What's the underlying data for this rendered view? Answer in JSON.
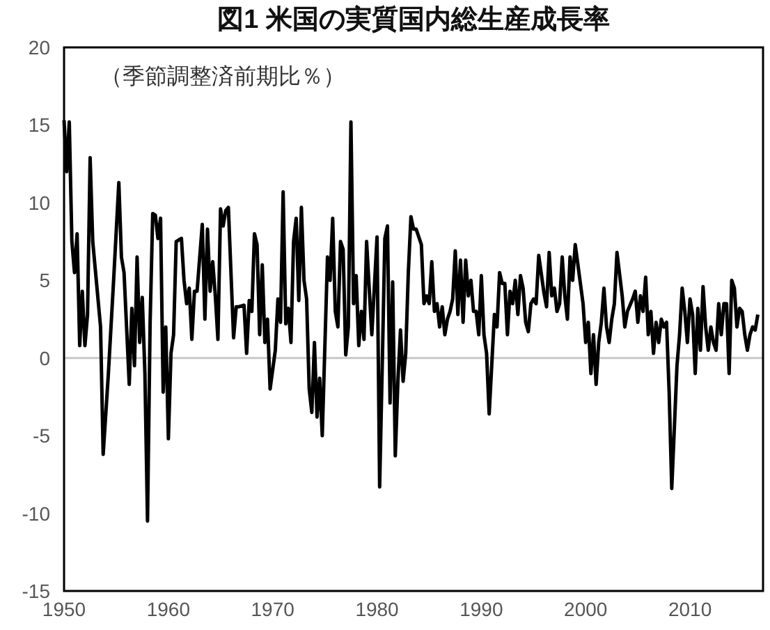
{
  "chart_data": {
    "type": "line",
    "title": "図1 米国の実質国内総生産成長率",
    "annotations": [
      "（季節調整済前期比％）"
    ],
    "color": "#000000",
    "xlim": [
      1950,
      2017
    ],
    "ylim": [
      -15,
      20
    ],
    "xticks": [
      1950,
      1960,
      1970,
      1980,
      1990,
      2000,
      2010
    ],
    "yticks": [
      -15,
      -10,
      -5,
      0,
      5,
      10,
      15,
      20
    ],
    "ref_lines": [
      {
        "axis": "y",
        "value": 0,
        "color": "#c8c8c8"
      }
    ],
    "grid": false,
    "line_style": "solid",
    "marker": "none",
    "x": [
      1950,
      1950.25,
      1950.5,
      1950.75,
      1951,
      1951.25,
      1951.5,
      1951.75,
      1952,
      1952.25,
      1952.5,
      1952.75,
      1953.5,
      1953.75,
      1954.25,
      1954.75,
      1955.25,
      1955.5,
      1955.75,
      1956.25,
      1956.5,
      1956.75,
      1957,
      1957.25,
      1957.5,
      1957.75,
      1958,
      1958.25,
      1958.5,
      1958.75,
      1959,
      1959.25,
      1959.5,
      1959.75,
      1960,
      1960.25,
      1960.5,
      1960.75,
      1961.25,
      1961.5,
      1961.75,
      1962,
      1962.25,
      1962.5,
      1962.75,
      1963.25,
      1963.5,
      1963.75,
      1964,
      1964.25,
      1964.5,
      1964.75,
      1965,
      1965.25,
      1965.5,
      1965.75,
      1966.25,
      1966.5,
      1966.75,
      1967.25,
      1967.5,
      1967.75,
      1968,
      1968.25,
      1968.5,
      1968.75,
      1969,
      1969.25,
      1969.5,
      1969.75,
      1970.25,
      1970.5,
      1970.75,
      1971,
      1971.25,
      1971.5,
      1971.75,
      1972,
      1972.25,
      1972.5,
      1972.75,
      1973,
      1973.25,
      1973.5,
      1973.75,
      1974,
      1974.25,
      1974.5,
      1974.75,
      1975.25,
      1975.5,
      1975.75,
      1976,
      1976.25,
      1976.5,
      1976.75,
      1977,
      1977.25,
      1977.5,
      1977.75,
      1978,
      1978.25,
      1978.5,
      1978.75,
      1979,
      1979.5,
      1980,
      1980.25,
      1980.5,
      1980.75,
      1981,
      1981.25,
      1981.5,
      1981.75,
      1982,
      1982.25,
      1982.5,
      1982.75,
      1983,
      1983.25,
      1983.5,
      1983.75,
      1984.25,
      1984.5,
      1984.75,
      1985,
      1985.25,
      1985.5,
      1985.75,
      1986,
      1986.25,
      1986.5,
      1986.75,
      1987,
      1987.25,
      1987.5,
      1987.75,
      1988,
      1988.25,
      1988.5,
      1988.75,
      1989,
      1989.25,
      1989.5,
      1989.75,
      1990,
      1990.25,
      1990.5,
      1990.75,
      1991.25,
      1991.5,
      1991.75,
      1992,
      1992.25,
      1992.5,
      1992.75,
      1993,
      1993.25,
      1993.5,
      1993.75,
      1994,
      1994.25,
      1994.5,
      1994.75,
      1995,
      1995.25,
      1995.5,
      1996,
      1996.25,
      1996.5,
      1996.75,
      1997,
      1997.25,
      1997.5,
      1997.75,
      1998,
      1998.25,
      1998.5,
      1998.75,
      1999,
      1999.75,
      2000,
      2000.25,
      2000.5,
      2000.75,
      2001,
      2001.25,
      2001.5,
      2001.75,
      2002,
      2002.25,
      2002.5,
      2002.75,
      2003,
      2003.5,
      2003.75,
      2004,
      2004.5,
      2004.75,
      2005,
      2005.25,
      2005.5,
      2005.75,
      2006,
      2006.25,
      2006.5,
      2006.75,
      2007,
      2007.25,
      2007.5,
      2007.75,
      2008,
      2008.25,
      2008.5,
      2008.75,
      2009,
      2009.25,
      2009.5,
      2009.75,
      2010,
      2010.25,
      2010.5,
      2010.75,
      2011,
      2011.25,
      2011.5,
      2011.75,
      2012,
      2012.25,
      2012.5,
      2012.75,
      2013,
      2013.25,
      2013.5,
      2013.75,
      2014,
      2014.25,
      2014.5,
      2014.75,
      2015,
      2015.25,
      2015.5,
      2015.75,
      2016,
      2016.25,
      2016.5
    ],
    "values": [
      15.3,
      12,
      15.2,
      7.5,
      5.5,
      8,
      0.8,
      4.3,
      0.8,
      2.8,
      12.9,
      7.5,
      2,
      -6.2,
      -1,
      5,
      11.3,
      6.5,
      5.5,
      -1.7,
      3.2,
      -0.5,
      6.5,
      1,
      3.9,
      -1,
      -10.5,
      2.3,
      9.3,
      9.2,
      7.7,
      9,
      -2.2,
      2,
      -5.2,
      0.3,
      1.5,
      7.5,
      7.7,
      5,
      3.5,
      4.5,
      1.2,
      4.3,
      4.3,
      8.6,
      2.5,
      8.3,
      4.3,
      6.2,
      4,
      1.2,
      9.6,
      8.5,
      9.5,
      9.7,
      1.3,
      3.3,
      3.3,
      3.4,
      0.3,
      3.7,
      3,
      8,
      7.3,
      1.5,
      6,
      1,
      2.5,
      -2,
      0.5,
      3.8,
      2.3,
      10.7,
      2.2,
      3.2,
      1,
      7.5,
      9,
      3.7,
      9.7,
      5,
      3.8,
      -2,
      -3.5,
      1,
      -3.8,
      -1.3,
      -5,
      6.5,
      5,
      9,
      3,
      2,
      7.5,
      7,
      0.2,
      2,
      15.2,
      3.5,
      5.3,
      0.8,
      3,
      1.2,
      7.5,
      1.5,
      7.8,
      -8.3,
      -0.5,
      7.7,
      8.5,
      -2.9,
      4.9,
      -6.3,
      -1.5,
      1.8,
      -1.5,
      0.3,
      5.5,
      9.1,
      8.3,
      8.3,
      7.3,
      3.5,
      4,
      3.5,
      6.2,
      3,
      3.5,
      2,
      3.3,
      1.5,
      2.5,
      3,
      3.8,
      6.9,
      2.8,
      6.3,
      2.3,
      6.3,
      4,
      5,
      3,
      3,
      1.5,
      5.3,
      1.5,
      0.3,
      -3.6,
      2.8,
      2,
      5.5,
      4.8,
      4.8,
      1.5,
      4.3,
      3.5,
      5,
      2.8,
      5.3,
      4.5,
      2.3,
      1.7,
      3.5,
      3.8,
      3.5,
      6.6,
      4.2,
      3.3,
      6.8,
      4,
      4.5,
      3,
      3.5,
      6.5,
      4,
      2.5,
      6.5,
      5,
      7.3,
      3.5,
      1,
      2.3,
      -1,
      1.5,
      -1.7,
      1,
      2.3,
      4.5,
      2,
      1,
      2.5,
      3.5,
      6.8,
      4,
      2,
      3,
      3.8,
      4.3,
      2.3,
      4,
      3,
      5.2,
      1.5,
      3,
      0.3,
      2.3,
      1,
      2.5,
      2,
      2.3,
      -2.2,
      -8.4,
      -4.5,
      -0.5,
      1.5,
      4.5,
      3,
      1,
      3.8,
      2.8,
      -1,
      3.2,
      0.5,
      4.6,
      2,
      0.5,
      2,
      1,
      0.5,
      3.5,
      1.5,
      3.5,
      3.5,
      -1,
      5,
      4.5,
      2,
      3.2,
      3,
      1.5,
      0.5,
      1.5,
      2,
      1.8,
      2.8
    ]
  }
}
